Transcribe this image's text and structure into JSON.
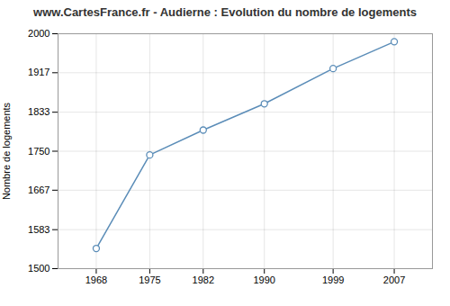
{
  "chart_data": {
    "type": "line",
    "title": "www.CartesFrance.fr - Audierne : Evolution du nombre de logements",
    "ylabel": "Nombre de logements",
    "x": [
      1968,
      1975,
      1982,
      1990,
      1999,
      2007
    ],
    "values": [
      1543,
      1742,
      1795,
      1851,
      1926,
      1983
    ],
    "color": "#5b8db8",
    "marker": "o",
    "xlim": [
      1963,
      2012
    ],
    "xticks": [
      1968,
      1975,
      1982,
      1990,
      1999,
      2007
    ],
    "ylim": [
      1500,
      2000
    ],
    "yticks": [
      1500,
      1583,
      1667,
      1750,
      1833,
      1917,
      2000
    ],
    "grid": true
  }
}
